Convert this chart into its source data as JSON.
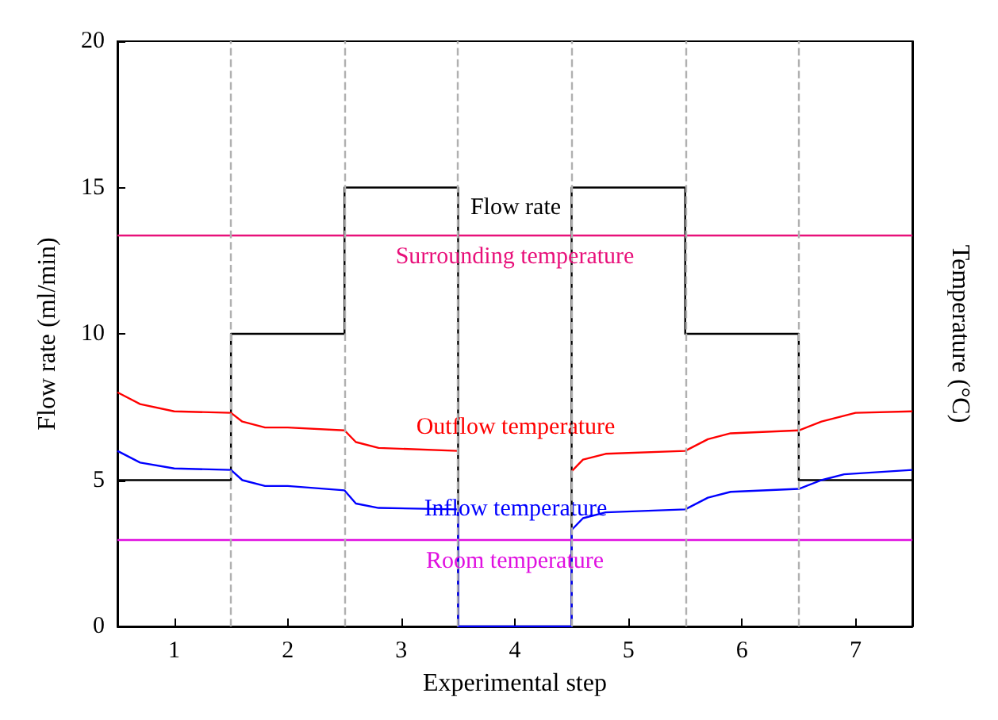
{
  "chart_data": {
    "type": "line",
    "xlabel": "Experimental step",
    "ylabel": "Flow rate (ml/min)",
    "y2label": "Temperature (°C)",
    "xlim": [
      0.5,
      7.5
    ],
    "xticks": [
      1,
      2,
      3,
      4,
      5,
      6,
      7
    ],
    "ylim": [
      0,
      20
    ],
    "yticks": [
      0,
      5,
      10,
      15,
      20
    ],
    "grid": false,
    "legend": false,
    "marker": "none",
    "series": [
      {
        "type": "step",
        "name": "Flow rate",
        "color": "#000000",
        "x": [
          0.5,
          1.5,
          2.5,
          3.5,
          4.5,
          5.5,
          6.5,
          7.5
        ],
        "values": [
          5,
          10,
          15,
          0,
          15,
          10,
          5,
          5
        ]
      },
      {
        "name": "Outflow temperature",
        "color": "#ff0000",
        "x": [
          0.5,
          0.7,
          1.0,
          1.5,
          1.6,
          1.8,
          2.0,
          2.5,
          2.6,
          2.8,
          3.5,
          null,
          4.5,
          4.6,
          4.8,
          5.5,
          5.7,
          5.9,
          6.5,
          6.7,
          7.0,
          7.5
        ],
        "values": [
          8.0,
          7.6,
          7.35,
          7.3,
          7.0,
          6.8,
          6.8,
          6.7,
          6.3,
          6.1,
          6.0,
          null,
          5.3,
          5.7,
          5.9,
          6.0,
          6.4,
          6.6,
          6.7,
          7.0,
          7.3,
          7.35
        ]
      },
      {
        "name": "Inflow temperature",
        "color": "#0000ff",
        "x": [
          0.5,
          0.7,
          1.0,
          1.5,
          1.6,
          1.8,
          2.0,
          2.5,
          2.6,
          2.8,
          3.5,
          3.5,
          4.5,
          4.5,
          4.6,
          4.8,
          5.5,
          5.7,
          5.9,
          6.5,
          6.7,
          6.9,
          7.5
        ],
        "values": [
          6.0,
          5.6,
          5.4,
          5.35,
          5.0,
          4.8,
          4.8,
          4.65,
          4.2,
          4.05,
          4.0,
          0,
          0,
          3.3,
          3.7,
          3.9,
          4.0,
          4.4,
          4.6,
          4.7,
          5.0,
          5.2,
          5.35
        ]
      }
    ],
    "ref_lines": [
      {
        "axis": "y",
        "value": 13.35,
        "label": "Surrounding temperature",
        "color": "#e8107a"
      },
      {
        "axis": "y",
        "value": 2.95,
        "label": "Room temperature",
        "color": "#e010e0"
      },
      {
        "axis": "x",
        "value": 1.5,
        "color": "#b0b0b0",
        "line_style": "dashed"
      },
      {
        "axis": "x",
        "value": 2.5,
        "color": "#b0b0b0",
        "line_style": "dashed"
      },
      {
        "axis": "x",
        "value": 3.5,
        "color": "#b0b0b0",
        "line_style": "dashed"
      },
      {
        "axis": "x",
        "value": 4.5,
        "color": "#b0b0b0",
        "line_style": "dashed"
      },
      {
        "axis": "x",
        "value": 5.5,
        "color": "#b0b0b0",
        "line_style": "dashed"
      },
      {
        "axis": "x",
        "value": 6.5,
        "color": "#b0b0b0",
        "line_style": "dashed"
      }
    ]
  }
}
